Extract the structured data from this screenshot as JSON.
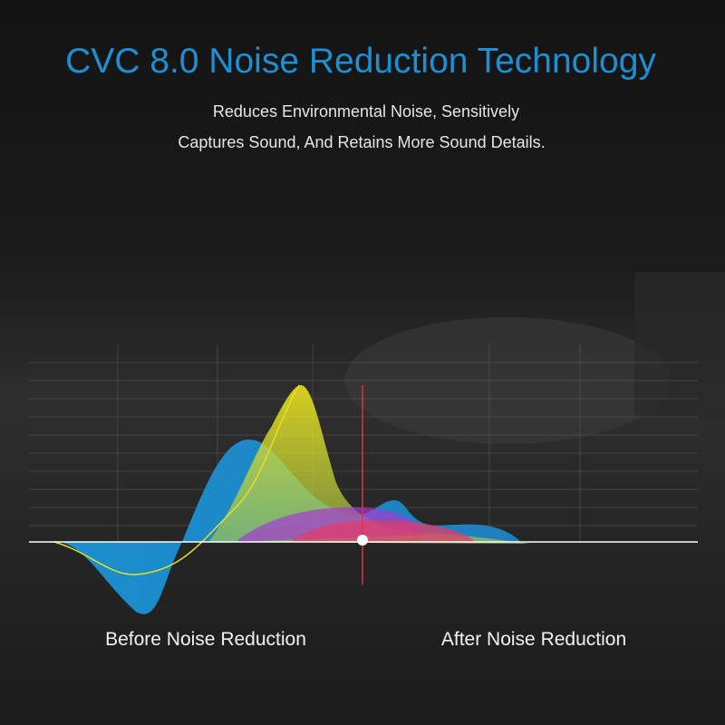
{
  "header": {
    "title": "CVC 8.0 Noise Reduction Technology",
    "subtitle": [
      "Reduces Environmental Noise, Sensitively",
      "Captures Sound, And Retains More Sound Details."
    ]
  },
  "labels": [
    "Before Noise Reduction",
    "After Noise Reduction"
  ]
}
